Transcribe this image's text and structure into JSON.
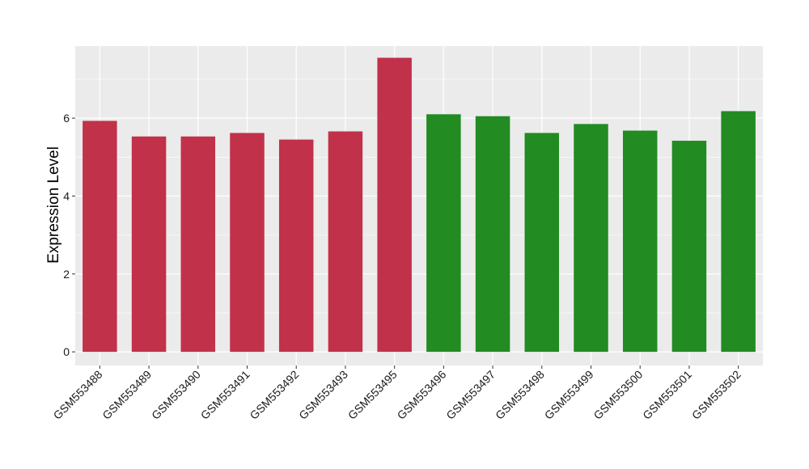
{
  "chart_data": {
    "type": "bar",
    "title": "",
    "xlabel": "",
    "ylabel": "Expression Level",
    "ylim": [
      -0.35,
      7.85
    ],
    "yticks": [
      0,
      2,
      4,
      6
    ],
    "grid": true,
    "background": "#EBEBEB",
    "categories": [
      "GSM553488",
      "GSM553489",
      "GSM553490",
      "GSM553491",
      "GSM553492",
      "GSM553493",
      "GSM553495",
      "GSM553496",
      "GSM553497",
      "GSM553498",
      "GSM553499",
      "GSM553500",
      "GSM553501",
      "GSM553502"
    ],
    "values": [
      5.93,
      5.53,
      5.53,
      5.62,
      5.45,
      5.66,
      7.55,
      6.1,
      6.05,
      5.62,
      5.85,
      5.68,
      5.42,
      6.18
    ],
    "colors": [
      "#C1314A",
      "#C1314A",
      "#C1314A",
      "#C1314A",
      "#C1314A",
      "#C1314A",
      "#C1314A",
      "#228B22",
      "#228B22",
      "#228B22",
      "#228B22",
      "#228B22",
      "#228B22",
      "#228B22"
    ]
  }
}
